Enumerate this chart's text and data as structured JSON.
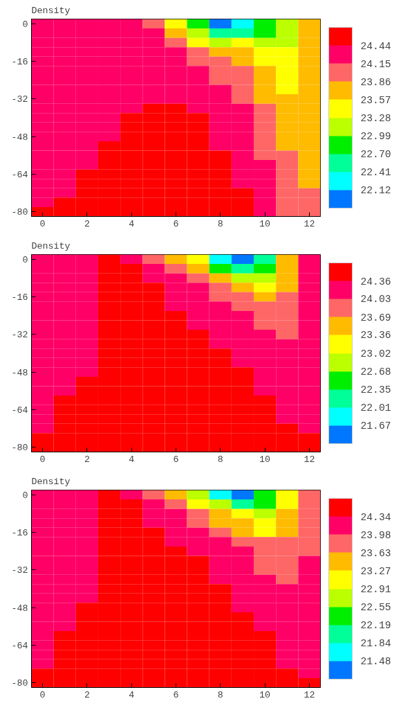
{
  "chart_data": [
    {
      "type": "heatmap",
      "title": "Density",
      "categories": [
        "0",
        null,
        "2",
        null,
        "4",
        null,
        "6",
        null,
        "8",
        null,
        "10",
        null,
        "12"
      ],
      "y_categories": [
        "0",
        null,
        null,
        null,
        "-16",
        null,
        null,
        null,
        "-32",
        null,
        null,
        null,
        "-48",
        null,
        null,
        null,
        "-64",
        null,
        null,
        null,
        "-80"
      ],
      "clim": [
        21.83,
        24.73
      ],
      "cticks": [
        24.44,
        24.15,
        23.86,
        23.57,
        23.28,
        22.99,
        {
          "value": 22.7,
          "label": "22.70"
        },
        22.41,
        22.12
      ],
      "colors": [
        "#0077ff",
        "#00ffff",
        "#00ff99",
        "#00ee00",
        "#bbff00",
        "#ffff00",
        "#ffbb00",
        "#ff6666",
        "#ff0066",
        "#ff0000"
      ],
      "cells": [
        [
          24.3,
          24.3,
          24.3,
          24.3,
          24.3,
          24.0,
          23.4,
          22.85,
          22.0,
          22.25,
          22.85,
          23.1,
          23.7
        ],
        [
          24.3,
          24.3,
          24.3,
          24.3,
          24.3,
          24.3,
          23.7,
          23.1,
          22.55,
          22.55,
          22.85,
          23.1,
          23.7
        ],
        [
          24.3,
          24.3,
          24.3,
          24.3,
          24.3,
          24.3,
          24.0,
          23.4,
          23.1,
          23.4,
          23.1,
          23.1,
          23.7
        ],
        [
          24.3,
          24.3,
          24.3,
          24.3,
          24.3,
          24.3,
          24.3,
          24.0,
          23.7,
          23.7,
          23.4,
          23.4,
          23.7
        ],
        [
          24.3,
          24.3,
          24.3,
          24.3,
          24.3,
          24.3,
          24.3,
          24.0,
          24.0,
          23.7,
          23.4,
          23.4,
          23.7
        ],
        [
          24.3,
          24.3,
          24.3,
          24.3,
          24.3,
          24.3,
          24.3,
          24.3,
          24.0,
          24.0,
          23.7,
          23.4,
          23.7
        ],
        [
          24.3,
          24.3,
          24.3,
          24.3,
          24.3,
          24.3,
          24.3,
          24.3,
          24.0,
          24.0,
          23.7,
          23.4,
          23.7
        ],
        [
          24.3,
          24.3,
          24.3,
          24.3,
          24.3,
          24.3,
          24.3,
          24.3,
          24.3,
          24.0,
          23.7,
          23.4,
          23.7
        ],
        [
          24.3,
          24.3,
          24.3,
          24.3,
          24.3,
          24.3,
          24.3,
          24.3,
          24.3,
          24.0,
          23.7,
          23.7,
          23.7
        ],
        [
          24.3,
          24.3,
          24.3,
          24.3,
          24.3,
          24.6,
          24.6,
          24.3,
          24.3,
          24.3,
          24.0,
          23.7,
          23.7
        ],
        [
          24.3,
          24.3,
          24.3,
          24.3,
          24.6,
          24.6,
          24.6,
          24.6,
          24.3,
          24.3,
          24.0,
          23.7,
          23.7
        ],
        [
          24.3,
          24.3,
          24.3,
          24.3,
          24.6,
          24.6,
          24.6,
          24.6,
          24.3,
          24.3,
          24.0,
          23.7,
          23.7
        ],
        [
          24.3,
          24.3,
          24.3,
          24.3,
          24.6,
          24.6,
          24.6,
          24.6,
          24.3,
          24.3,
          24.0,
          23.7,
          23.7
        ],
        [
          24.3,
          24.3,
          24.3,
          24.6,
          24.6,
          24.6,
          24.6,
          24.6,
          24.3,
          24.3,
          24.0,
          23.7,
          23.7
        ],
        [
          24.3,
          24.3,
          24.3,
          24.6,
          24.6,
          24.6,
          24.6,
          24.6,
          24.6,
          24.3,
          24.0,
          24.0,
          23.7
        ],
        [
          24.3,
          24.3,
          24.3,
          24.6,
          24.6,
          24.6,
          24.6,
          24.6,
          24.6,
          24.3,
          24.3,
          24.0,
          23.7
        ],
        [
          24.3,
          24.3,
          24.6,
          24.6,
          24.6,
          24.6,
          24.6,
          24.6,
          24.6,
          24.3,
          24.3,
          24.0,
          23.7
        ],
        [
          24.3,
          24.3,
          24.6,
          24.6,
          24.6,
          24.6,
          24.6,
          24.6,
          24.6,
          24.3,
          24.3,
          24.0,
          23.7
        ],
        [
          24.3,
          24.3,
          24.6,
          24.6,
          24.6,
          24.6,
          24.6,
          24.6,
          24.6,
          24.6,
          24.3,
          24.0,
          24.0
        ],
        [
          24.3,
          24.6,
          24.6,
          24.6,
          24.6,
          24.6,
          24.6,
          24.6,
          24.6,
          24.6,
          24.3,
          24.0,
          24.0
        ],
        [
          24.6,
          24.6,
          24.6,
          24.6,
          24.6,
          24.6,
          24.6,
          24.6,
          24.6,
          24.6,
          24.3,
          24.0,
          24.0
        ]
      ]
    },
    {
      "type": "heatmap",
      "title": "Density",
      "categories": [
        "0",
        null,
        "2",
        null,
        "4",
        null,
        "6",
        null,
        "8",
        null,
        "10",
        null,
        "12"
      ],
      "y_categories": [
        "0",
        null,
        null,
        null,
        "-16",
        null,
        null,
        null,
        "-32",
        null,
        null,
        null,
        "-48",
        null,
        null,
        null,
        "-64",
        null,
        null,
        null,
        "-80"
      ],
      "clim": [
        21.33,
        24.7
      ],
      "cticks": [
        24.36,
        24.03,
        23.69,
        23.36,
        23.02,
        22.68,
        22.35,
        22.01,
        21.67
      ],
      "colors": [
        "#0077ff",
        "#00ffff",
        "#00ff99",
        "#00ee00",
        "#bbff00",
        "#ffff00",
        "#ffbb00",
        "#ff6666",
        "#ff0066",
        "#ff0000"
      ],
      "cells": [
        [
          24.2,
          24.2,
          24.2,
          24.5,
          24.2,
          23.85,
          23.5,
          23.2,
          21.85,
          21.5,
          22.2,
          23.5,
          24.2
        ],
        [
          24.2,
          24.2,
          24.2,
          24.5,
          24.5,
          24.2,
          23.85,
          23.5,
          22.5,
          22.2,
          22.5,
          23.5,
          24.2
        ],
        [
          24.2,
          24.2,
          24.2,
          24.5,
          24.5,
          24.2,
          24.2,
          23.85,
          23.5,
          22.85,
          22.85,
          23.5,
          24.2
        ],
        [
          24.2,
          24.2,
          24.2,
          24.5,
          24.5,
          24.5,
          24.2,
          24.2,
          23.85,
          23.5,
          23.2,
          23.5,
          24.2
        ],
        [
          24.2,
          24.2,
          24.2,
          24.5,
          24.5,
          24.5,
          24.2,
          24.2,
          23.85,
          23.85,
          23.5,
          23.85,
          24.2
        ],
        [
          24.2,
          24.2,
          24.2,
          24.5,
          24.5,
          24.5,
          24.2,
          24.2,
          24.2,
          23.85,
          23.85,
          23.85,
          24.2
        ],
        [
          24.2,
          24.2,
          24.2,
          24.5,
          24.5,
          24.5,
          24.5,
          24.2,
          24.2,
          24.2,
          23.85,
          23.85,
          24.2
        ],
        [
          24.2,
          24.2,
          24.2,
          24.5,
          24.5,
          24.5,
          24.5,
          24.2,
          24.2,
          24.2,
          23.85,
          23.85,
          24.2
        ],
        [
          24.2,
          24.2,
          24.2,
          24.5,
          24.5,
          24.5,
          24.5,
          24.5,
          24.2,
          24.2,
          24.2,
          23.85,
          24.2
        ],
        [
          24.2,
          24.2,
          24.2,
          24.5,
          24.5,
          24.5,
          24.5,
          24.5,
          24.2,
          24.2,
          24.2,
          24.2,
          24.2
        ],
        [
          24.2,
          24.2,
          24.2,
          24.5,
          24.5,
          24.5,
          24.5,
          24.5,
          24.5,
          24.2,
          24.2,
          24.2,
          24.2
        ],
        [
          24.2,
          24.2,
          24.2,
          24.5,
          24.5,
          24.5,
          24.5,
          24.5,
          24.5,
          24.2,
          24.2,
          24.2,
          24.2
        ],
        [
          24.2,
          24.2,
          24.2,
          24.5,
          24.5,
          24.5,
          24.5,
          24.5,
          24.5,
          24.5,
          24.2,
          24.2,
          24.2
        ],
        [
          24.2,
          24.2,
          24.5,
          24.5,
          24.5,
          24.5,
          24.5,
          24.5,
          24.5,
          24.5,
          24.2,
          24.2,
          24.2
        ],
        [
          24.2,
          24.2,
          24.5,
          24.5,
          24.5,
          24.5,
          24.5,
          24.5,
          24.5,
          24.5,
          24.2,
          24.2,
          24.2
        ],
        [
          24.2,
          24.5,
          24.5,
          24.5,
          24.5,
          24.5,
          24.5,
          24.5,
          24.5,
          24.5,
          24.5,
          24.2,
          24.2
        ],
        [
          24.2,
          24.5,
          24.5,
          24.5,
          24.5,
          24.5,
          24.5,
          24.5,
          24.5,
          24.5,
          24.5,
          24.2,
          24.2
        ],
        [
          24.2,
          24.5,
          24.5,
          24.5,
          24.5,
          24.5,
          24.5,
          24.5,
          24.5,
          24.5,
          24.5,
          24.2,
          24.2
        ],
        [
          24.2,
          24.5,
          24.5,
          24.5,
          24.5,
          24.5,
          24.5,
          24.5,
          24.5,
          24.5,
          24.5,
          24.5,
          24.2
        ],
        [
          24.5,
          24.5,
          24.5,
          24.5,
          24.5,
          24.5,
          24.5,
          24.5,
          24.5,
          24.5,
          24.5,
          24.5,
          24.5
        ],
        [
          24.5,
          24.5,
          24.5,
          24.5,
          24.5,
          24.5,
          24.5,
          24.5,
          24.5,
          24.5,
          24.5,
          24.5,
          24.5
        ]
      ]
    },
    {
      "type": "heatmap",
      "title": "Density",
      "categories": [
        "0",
        null,
        "2",
        null,
        "4",
        null,
        "6",
        null,
        "8",
        null,
        "10",
        null,
        "12"
      ],
      "y_categories": [
        "0",
        null,
        null,
        null,
        "-16",
        null,
        null,
        null,
        "-32",
        null,
        null,
        null,
        "-48",
        null,
        null,
        null,
        "-64",
        null,
        null,
        null,
        "-80"
      ],
      "clim": [
        21.12,
        24.7
      ],
      "cticks": [
        24.34,
        23.98,
        23.63,
        23.27,
        22.91,
        22.55,
        22.19,
        21.84,
        21.48
      ],
      "colors": [
        "#0077ff",
        "#00ffff",
        "#00ff99",
        "#00ee00",
        "#bbff00",
        "#ffff00",
        "#ffbb00",
        "#ff6666",
        "#ff0066",
        "#ff0000"
      ],
      "cells": [
        [
          24.15,
          24.15,
          24.15,
          24.5,
          24.15,
          23.8,
          23.45,
          22.75,
          21.65,
          21.3,
          22.4,
          23.1,
          23.8
        ],
        [
          24.15,
          24.15,
          24.15,
          24.5,
          24.5,
          24.15,
          23.8,
          23.1,
          22.75,
          22.0,
          22.4,
          23.1,
          23.8
        ],
        [
          24.15,
          24.15,
          24.15,
          24.5,
          24.5,
          24.15,
          24.15,
          23.8,
          23.45,
          23.1,
          22.75,
          23.45,
          23.8
        ],
        [
          24.15,
          24.15,
          24.15,
          24.5,
          24.5,
          24.15,
          24.15,
          23.8,
          23.45,
          23.45,
          23.1,
          23.45,
          23.8
        ],
        [
          24.15,
          24.15,
          24.15,
          24.5,
          24.5,
          24.5,
          24.15,
          24.15,
          23.8,
          23.45,
          23.1,
          23.45,
          23.8
        ],
        [
          24.15,
          24.15,
          24.15,
          24.5,
          24.5,
          24.5,
          24.15,
          24.15,
          24.15,
          23.8,
          23.8,
          23.8,
          23.8
        ],
        [
          24.15,
          24.15,
          24.15,
          24.5,
          24.5,
          24.5,
          24.5,
          24.15,
          24.15,
          24.15,
          23.8,
          23.8,
          23.8
        ],
        [
          24.15,
          24.15,
          24.15,
          24.5,
          24.5,
          24.5,
          24.5,
          24.5,
          24.15,
          24.15,
          23.8,
          23.8,
          24.15
        ],
        [
          24.15,
          24.15,
          24.15,
          24.5,
          24.5,
          24.5,
          24.5,
          24.5,
          24.15,
          24.15,
          23.8,
          23.8,
          24.15
        ],
        [
          24.15,
          24.15,
          24.15,
          24.5,
          24.5,
          24.5,
          24.5,
          24.5,
          24.15,
          24.15,
          24.15,
          23.8,
          24.15
        ],
        [
          24.15,
          24.15,
          24.15,
          24.5,
          24.5,
          24.5,
          24.5,
          24.5,
          24.5,
          24.15,
          24.15,
          24.15,
          24.15
        ],
        [
          24.15,
          24.15,
          24.15,
          24.5,
          24.5,
          24.5,
          24.5,
          24.5,
          24.5,
          24.15,
          24.15,
          24.15,
          24.15
        ],
        [
          24.15,
          24.15,
          24.5,
          24.5,
          24.5,
          24.5,
          24.5,
          24.5,
          24.5,
          24.15,
          24.15,
          24.15,
          24.15
        ],
        [
          24.15,
          24.15,
          24.5,
          24.5,
          24.5,
          24.5,
          24.5,
          24.5,
          24.5,
          24.5,
          24.15,
          24.15,
          24.15
        ],
        [
          24.15,
          24.15,
          24.5,
          24.5,
          24.5,
          24.5,
          24.5,
          24.5,
          24.5,
          24.5,
          24.15,
          24.15,
          24.15
        ],
        [
          24.15,
          24.5,
          24.5,
          24.5,
          24.5,
          24.5,
          24.5,
          24.5,
          24.5,
          24.5,
          24.5,
          24.15,
          24.15
        ],
        [
          24.15,
          24.5,
          24.5,
          24.5,
          24.5,
          24.5,
          24.5,
          24.5,
          24.5,
          24.5,
          24.5,
          24.15,
          24.15
        ],
        [
          24.15,
          24.5,
          24.5,
          24.5,
          24.5,
          24.5,
          24.5,
          24.5,
          24.5,
          24.5,
          24.5,
          24.15,
          24.15
        ],
        [
          24.15,
          24.5,
          24.5,
          24.5,
          24.5,
          24.5,
          24.5,
          24.5,
          24.5,
          24.5,
          24.5,
          24.15,
          24.15
        ],
        [
          24.5,
          24.5,
          24.5,
          24.5,
          24.5,
          24.5,
          24.5,
          24.5,
          24.5,
          24.5,
          24.5,
          24.5,
          24.15
        ],
        [
          24.5,
          24.5,
          24.5,
          24.5,
          24.5,
          24.5,
          24.5,
          24.5,
          24.5,
          24.5,
          24.5,
          24.5,
          24.5
        ]
      ]
    }
  ]
}
